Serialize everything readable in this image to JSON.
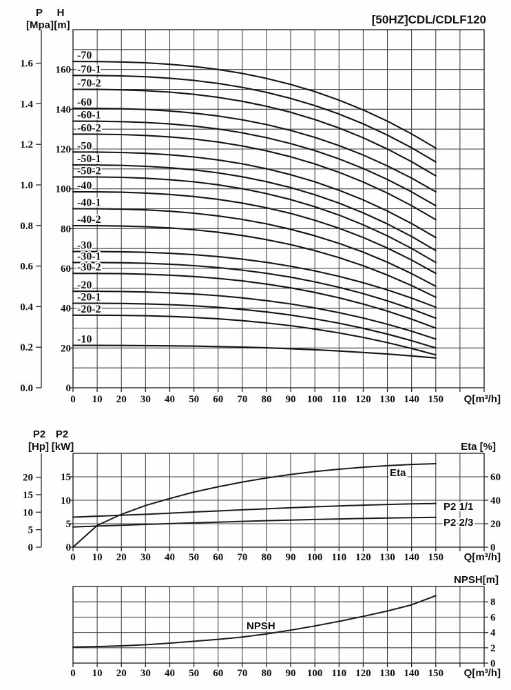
{
  "page_title": "[50HZ]CDL/CDLF120",
  "colors": {
    "ink": "#141414",
    "grid": "#3c3c3c",
    "background": "#fefefe"
  },
  "chart_data": [
    {
      "type": "line",
      "id": "head-capacity",
      "title": "[50HZ]CDL/CDLF120",
      "xlabel": "Q[m³/h]",
      "xlim": [
        0,
        170
      ],
      "x_ticks": [
        0,
        10,
        20,
        30,
        40,
        50,
        60,
        70,
        80,
        90,
        100,
        110,
        120,
        130,
        140,
        150
      ],
      "ylim_h_m": [
        0,
        180
      ],
      "grid_step_m": 10,
      "left_axis_primary": {
        "name": "P",
        "unit": "[Mpa]",
        "ticks": [
          "0.0",
          "0.2",
          "0.4",
          "0.6",
          "0.8",
          "1.0",
          "1.2",
          "1.4",
          "1.6"
        ]
      },
      "left_axis_secondary": {
        "name": "H",
        "unit": "[m]",
        "ticks": [
          0,
          20,
          40,
          60,
          80,
          100,
          120,
          140,
          160
        ]
      },
      "curve_shape_exponent": 2.6,
      "q_range": [
        0,
        150
      ],
      "series": [
        {
          "label": "-70",
          "shutoff_head_m": 164.0,
          "head_at_q150_m": 120.5
        },
        {
          "label": "-70-1",
          "shutoff_head_m": 157.0,
          "head_at_q150_m": 113.5
        },
        {
          "label": "-70-2",
          "shutoff_head_m": 150.0,
          "head_at_q150_m": 106.5
        },
        {
          "label": "-60",
          "shutoff_head_m": 140.5,
          "head_at_q150_m": 98.5
        },
        {
          "label": "-60-1",
          "shutoff_head_m": 134.0,
          "head_at_q150_m": 91.5
        },
        {
          "label": "-60-2",
          "shutoff_head_m": 127.5,
          "head_at_q150_m": 84.5
        },
        {
          "label": "-50",
          "shutoff_head_m": 118.5,
          "head_at_q150_m": 75.5
        },
        {
          "label": "-50-1",
          "shutoff_head_m": 112.0,
          "head_at_q150_m": 69.0
        },
        {
          "label": "-50-2",
          "shutoff_head_m": 106.0,
          "head_at_q150_m": 63.0
        },
        {
          "label": "-40",
          "shutoff_head_m": 98.5,
          "head_at_q150_m": 57.5
        },
        {
          "label": "-40-1",
          "shutoff_head_m": 90.0,
          "head_at_q150_m": 51.0
        },
        {
          "label": "-40-2",
          "shutoff_head_m": 81.5,
          "head_at_q150_m": 45.5
        },
        {
          "label": "-30",
          "shutoff_head_m": 68.5,
          "head_at_q150_m": 40.5
        },
        {
          "label": "-30-1",
          "shutoff_head_m": 63.0,
          "head_at_q150_m": 35.0
        },
        {
          "label": "-30-2",
          "shutoff_head_m": 57.5,
          "head_at_q150_m": 30.0
        },
        {
          "label": "-20",
          "shutoff_head_m": 48.5,
          "head_at_q150_m": 24.5
        },
        {
          "label": "-20-1",
          "shutoff_head_m": 42.5,
          "head_at_q150_m": 20.0
        },
        {
          "label": "-20-2",
          "shutoff_head_m": 36.5,
          "head_at_q150_m": 16.5
        },
        {
          "label": "-10",
          "shutoff_head_m": 21.3,
          "head_at_q150_m": 15.0
        }
      ]
    },
    {
      "type": "line",
      "id": "power-efficiency",
      "xlabel": "Q[m³/h]",
      "xlim": [
        0,
        170
      ],
      "x_ticks": [
        0,
        10,
        20,
        30,
        40,
        50,
        60,
        70,
        80,
        90,
        100,
        110,
        120,
        130,
        140,
        150
      ],
      "left_axis_hp": {
        "name": "P2",
        "unit": "[Hp]",
        "ticks": [
          0,
          5,
          10,
          15,
          20
        ]
      },
      "left_axis_kw": {
        "name": "P2",
        "unit": "[kW]",
        "ticks": [
          0,
          5,
          10,
          15
        ],
        "max": 20
      },
      "right_axis_eta": {
        "title": "Eta [%]",
        "ticks": [
          0,
          20,
          40,
          60
        ],
        "max": 80
      },
      "q": [
        0,
        10,
        20,
        30,
        40,
        50,
        60,
        70,
        80,
        90,
        100,
        110,
        120,
        130,
        140,
        150
      ],
      "series": [
        {
          "label": "Eta",
          "axis": "eta",
          "unit": "%",
          "values": [
            0,
            18.5,
            28,
            35.5,
            41.5,
            47,
            51.5,
            55.5,
            59,
            62,
            64.5,
            66.5,
            68.2,
            69.5,
            70.5,
            71.2
          ]
        },
        {
          "label": "P2 1/1",
          "axis": "kw",
          "unit": "kW",
          "values": [
            6.4,
            6.6,
            6.8,
            7.0,
            7.25,
            7.5,
            7.72,
            7.95,
            8.18,
            8.4,
            8.6,
            8.8,
            8.95,
            9.1,
            9.22,
            9.3
          ]
        },
        {
          "label": "P2 2/3",
          "axis": "kw",
          "unit": "kW",
          "values": [
            4.3,
            4.5,
            4.68,
            4.85,
            5.02,
            5.18,
            5.34,
            5.5,
            5.64,
            5.78,
            5.9,
            6.01,
            6.12,
            6.21,
            6.29,
            6.35
          ]
        }
      ]
    },
    {
      "type": "line",
      "id": "npsh",
      "xlabel": "Q[m³/h]",
      "xlim": [
        0,
        170
      ],
      "x_ticks": [
        0,
        10,
        20,
        30,
        40,
        50,
        60,
        70,
        80,
        90,
        100,
        110,
        120,
        130,
        140,
        150
      ],
      "right_axis": {
        "title": "NPSH[m]",
        "ticks": [
          0,
          2,
          4,
          6,
          8
        ],
        "max": 10
      },
      "q": [
        0,
        10,
        20,
        30,
        40,
        50,
        60,
        70,
        80,
        90,
        100,
        110,
        120,
        130,
        140,
        150
      ],
      "series": [
        {
          "label": "NPSH",
          "unit": "m",
          "values": [
            2.1,
            2.15,
            2.25,
            2.4,
            2.6,
            2.85,
            3.1,
            3.4,
            3.8,
            4.3,
            4.85,
            5.45,
            6.1,
            6.8,
            7.6,
            8.8
          ]
        }
      ]
    }
  ]
}
